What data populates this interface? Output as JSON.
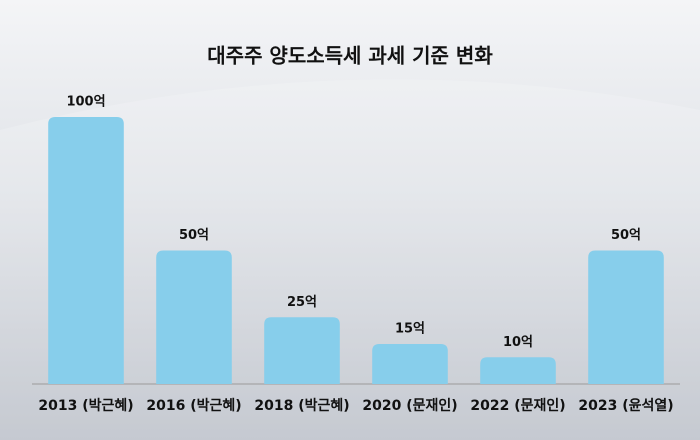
{
  "chart_data": {
    "type": "bar",
    "title": "대주주 양도소득세 과세 기준 변화",
    "categories": [
      "2013 (박근혜)",
      "2016 (박근혜)",
      "2018 (박근혜)",
      "2020 (문재인)",
      "2022 (문재인)",
      "2023 (윤석열)"
    ],
    "values": [
      100,
      50,
      25,
      15,
      10,
      50
    ],
    "value_labels": [
      "100억",
      "50억",
      "25억",
      "15억",
      "10억",
      "50억"
    ],
    "color": "#87ceeb",
    "ylim": [
      0,
      100
    ]
  }
}
